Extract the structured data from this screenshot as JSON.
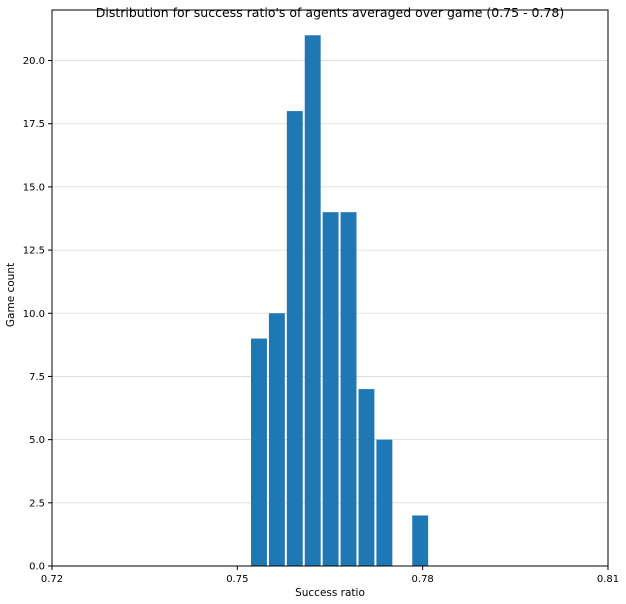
{
  "chart_data": {
    "type": "bar",
    "title": "Distribution for success ratio's of agents averaged over game (0.75 - 0.78)",
    "xlabel": "Success ratio",
    "ylabel": "Game count",
    "xlim": [
      0.72,
      0.81
    ],
    "ylim": [
      0,
      22
    ],
    "xticks": [
      "0.72",
      "0.75",
      "0.78",
      "0.81"
    ],
    "yticks": [
      "0.0",
      "2.5",
      "5.0",
      "7.5",
      "10.0",
      "12.5",
      "15.0",
      "17.5",
      "20.0"
    ],
    "grid": "y",
    "bin_width": 0.0029,
    "x": [
      0.7535,
      0.7564,
      0.7593,
      0.7622,
      0.7651,
      0.768,
      0.7709,
      0.7738,
      0.7767,
      0.7796
    ],
    "values": [
      9,
      10,
      18,
      21,
      14,
      14,
      7,
      5,
      0,
      2
    ],
    "color": "#1f77b4"
  }
}
